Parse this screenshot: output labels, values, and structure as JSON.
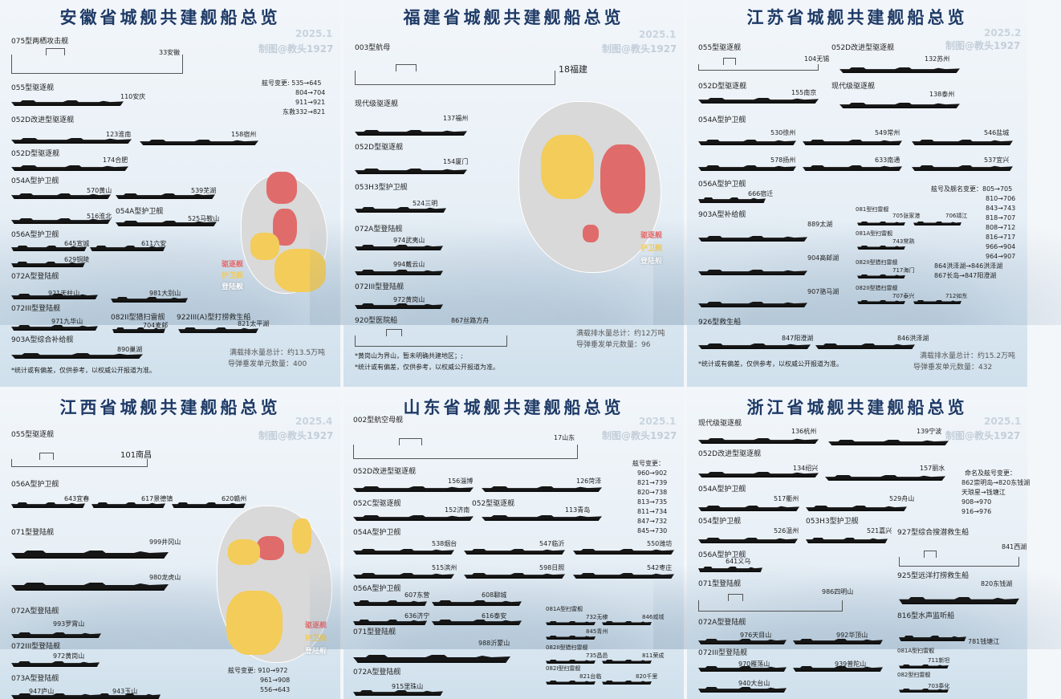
{
  "anhui": {
    "title": "安徽省城舰共建舰船总览",
    "date": "2025.1",
    "author": "制图@教头1927",
    "labels": [
      "075型两栖攻击舰",
      "055型驱逐舰",
      "052D改进型驱逐舰",
      "052D型驱逐舰",
      "054A型护卫舰",
      "054A型护卫舰",
      "056A型护卫舰",
      "072A型登陆舰",
      "072III型登陆舰",
      "082II型猎扫雷舰",
      "922III(A)型打捞救生船",
      "903A型综合补给舰"
    ],
    "names": [
      "33安徽",
      "110安庆",
      "123淮南",
      "158宿州",
      "174合肥",
      "570黄山",
      "539芜湖",
      "516淮北",
      "525马鞍山",
      "645宣城",
      "611六安",
      "629铜陵",
      "921天柱山",
      "981大别山",
      "971九华山",
      "704麦邮",
      "821太平湖",
      "890巢湖"
    ],
    "codes": [
      "舷号变更: 535→645",
      "804→704",
      "911→921",
      "东救332→821"
    ],
    "legend": [
      "驱逐舰",
      "护卫舰",
      "登陆舰"
    ],
    "stats": [
      "满载排水量总计：约13.5万吨",
      "导弹垂发单元数量：400"
    ],
    "note": "*统计或有偏差，仅供参考，以权威公开报道为准。"
  },
  "fujian": {
    "title": "福建省城舰共建舰船总览",
    "date": "2025.1",
    "author": "制图@教头1927",
    "labels": [
      "003型航母",
      "现代级驱逐舰",
      "052D型驱逐舰",
      "053H3型护卫舰",
      "072A型登陆舰",
      "072III型登陆舰",
      "920型医院船"
    ],
    "names": [
      "18福建",
      "137福州",
      "154厦门",
      "524三明",
      "974武夷山",
      "994戴云山",
      "972黄岗山",
      "867丝路方舟"
    ],
    "legend": [
      "驱逐舰",
      "护卫舰",
      "登陆舰"
    ],
    "stats": [
      "满载排水量总计：约12万吨",
      "导弹垂发单元数量：96"
    ],
    "notes": [
      "*黄岗山为界山，暂未明确共建地区；;",
      "*统计或有偏差，仅供参考，以权威公开报道为准。"
    ]
  },
  "jiangsu": {
    "title": "江苏省城舰共建舰船总览",
    "date": "2025.2",
    "author": "制图@教头1927",
    "labels": [
      "055型驱逐舰",
      "052D改进型驱逐舰",
      "052D型驱逐舰",
      "现代级驱逐舰",
      "054A型护卫舰",
      "056A型护卫舰",
      "903A型补给舰",
      "081型扫雷舰",
      "081A型扫雷舰",
      "082II型猎扫雷舰",
      "082II型猎扫雷舰",
      "926型救生船"
    ],
    "names": [
      "104无锡",
      "132苏州",
      "155南京",
      "138泰州",
      "530徐州",
      "549常州",
      "546盐城",
      "578扬州",
      "633南通",
      "537宜兴",
      "666宿迁",
      "889太湖",
      "904高邮湖",
      "907骆马湖",
      "705张家港",
      "706靖江",
      "743常熟",
      "717海门",
      "707泰兴",
      "712如东",
      "847阳澄湖",
      "846洪泽湖"
    ],
    "codes": [
      "舷号及舰名变更：805→705",
      "810→706",
      "843→743",
      "818→707",
      "808→712",
      "816→717",
      "966→904",
      "964→907",
      "864洪泽湖→846洪泽湖",
      "867长岛→847阳澄湖"
    ],
    "stats": [
      "满载排水量总计：约15.2万吨",
      "导弹垂发单元数量：432"
    ],
    "note": "*统计或有偏差，仅供参考，以权威公开报道为准。"
  },
  "jiangxi": {
    "title": "江西省城舰共建舰船总览",
    "date": "2025.4",
    "author": "制图@教头1927",
    "labels": [
      "055型驱逐舰",
      "056A型护卫舰",
      "071型登陆舰",
      "072A型登陆舰",
      "072III型登陆舰",
      "073A型登陆舰"
    ],
    "names": [
      "101南昌",
      "643宜春",
      "617景德镇",
      "620赣州",
      "999井冈山",
      "980龙虎山",
      "993罗霄山",
      "972黄岗山",
      "947庐山",
      "943玉山"
    ],
    "legend": [
      "驱逐舰",
      "护卫舰",
      "登陆舰"
    ],
    "codes": [
      "舷号变更: 910→972",
      "961→908",
      "556→643"
    ]
  },
  "shandong": {
    "title": "山东省城舰共建舰船总览",
    "date": "2025.1",
    "author": "制图@教头1927",
    "labels": [
      "002型航空母舰",
      "052D改进型驱逐舰",
      "052C型驱逐舰",
      "052型驱逐舰",
      "054A型护卫舰",
      "056A型护卫舰",
      "071型登陆舰",
      "072A型登陆舰",
      "081A型扫雷舰",
      "082II型猎扫雷舰",
      "082I型扫雷舰"
    ],
    "names": [
      "17山东",
      "156淄博",
      "126菏泽",
      "152济南",
      "113青岛",
      "538烟台",
      "547临沂",
      "550潍坊",
      "515滨州",
      "598日照",
      "542枣庄",
      "607东营",
      "608聊城",
      "636济宁",
      "616泰安",
      "988沂蒙山",
      "915里珠山",
      "732无棣",
      "846威城",
      "845青州",
      "735昌邑",
      "811荣成",
      "821台临",
      "820千里"
    ],
    "codes": [
      "舷号变更：",
      "960→902",
      "821→739",
      "820→738",
      "813→735",
      "811→734",
      "847→732",
      "845→730"
    ]
  },
  "zhejiang": {
    "title": "浙江省城舰共建舰船总览",
    "date": "2025.1",
    "author": "制图@教头1927",
    "labels": [
      "现代级驱逐舰",
      "052D改进型驱逐舰",
      "054A型护卫舰",
      "054型护卫舰",
      "053H3型护卫舰",
      "927型综合搜潜救生船",
      "056A型护卫舰",
      "925型远洋打捞救生船",
      "071型登陆舰",
      "816型水声监听船",
      "072A型登陆舰",
      "072III型登陆舰",
      "081A型扫雷舰",
      "082型扫雷舰"
    ],
    "names": [
      "136杭州",
      "139宁波",
      "134绍兴",
      "157丽水",
      "517衢州",
      "529舟山",
      "526温州",
      "521嘉兴",
      "841西湖",
      "641义乌",
      "820东钱湖",
      "986四明山",
      "781钱塘江",
      "976天目山",
      "992华顶山",
      "970雁荡山",
      "939普陀山",
      "940大台山",
      "711新坦",
      "703奉化"
    ],
    "codes": [
      "命名及舷号变更：",
      "862崇明岛→820东钱湖",
      "天琅星→钱塘江",
      "908→970",
      "916→976"
    ]
  }
}
